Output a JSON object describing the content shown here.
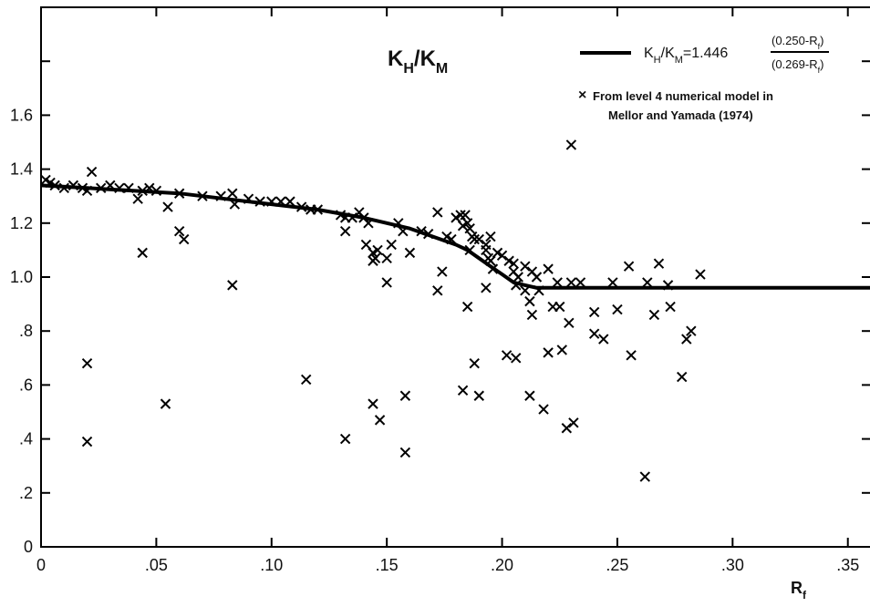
{
  "chart_data": {
    "type": "scatter",
    "title_parts": {
      "base": "K",
      "sub1": "H",
      "slash": "/K",
      "sub2": "M"
    },
    "xlabel_parts": {
      "base": "R",
      "sub": "f"
    },
    "ylabel": "",
    "xlim": [
      0,
      0.36
    ],
    "ylim": [
      0,
      2.0
    ],
    "x_ticks": [
      0,
      0.05,
      0.1,
      0.15,
      0.2,
      0.25,
      0.3,
      0.35
    ],
    "x_tick_labels": [
      "0",
      ".05",
      ".10",
      ".15",
      ".20",
      ".25",
      ".30",
      ".35"
    ],
    "y_ticks": [
      0,
      0.2,
      0.4,
      0.6,
      0.8,
      1.0,
      1.2,
      1.4,
      1.6,
      1.8
    ],
    "y_tick_labels": [
      "0",
      ".2",
      ".4",
      ".6",
      ".8",
      "1.0",
      "1.2",
      "1.4",
      "1.6",
      ""
    ],
    "legend": {
      "line_label_prefix": "K",
      "line_label_sub1": "H",
      "line_label_mid": "/K",
      "line_label_sub2": "M",
      "line_label_coef": "=1.446",
      "fraction_numerator": "(0.250-R",
      "fraction_denominator": "(0.269-R",
      "fraction_sub": "f",
      "fraction_close": ")",
      "marker_symbol": "×",
      "marker_label_line1": "From level 4 numerical model in",
      "marker_label_line2": "Mellor and Yamada (1974)"
    },
    "series": [
      {
        "kind": "line",
        "x": [
          0,
          0.02,
          0.04,
          0.06,
          0.08,
          0.1,
          0.12,
          0.14,
          0.15,
          0.16,
          0.17,
          0.18,
          0.185,
          0.19,
          0.195,
          0.2,
          0.205,
          0.21,
          0.215,
          0.22,
          0.25,
          0.3,
          0.36
        ],
        "y": [
          1.34,
          1.33,
          1.32,
          1.31,
          1.29,
          1.27,
          1.25,
          1.22,
          1.2,
          1.18,
          1.15,
          1.12,
          1.1,
          1.07,
          1.04,
          1.01,
          0.98,
          0.97,
          0.96,
          0.96,
          0.96,
          0.96,
          0.96
        ]
      },
      {
        "kind": "scatter",
        "points": [
          [
            0.002,
            1.36
          ],
          [
            0.004,
            1.35
          ],
          [
            0.006,
            1.34
          ],
          [
            0.01,
            1.33
          ],
          [
            0.014,
            1.34
          ],
          [
            0.018,
            1.33
          ],
          [
            0.02,
            1.32
          ],
          [
            0.022,
            1.39
          ],
          [
            0.026,
            1.33
          ],
          [
            0.03,
            1.34
          ],
          [
            0.034,
            1.33
          ],
          [
            0.038,
            1.33
          ],
          [
            0.042,
            1.29
          ],
          [
            0.044,
            1.32
          ],
          [
            0.047,
            1.33
          ],
          [
            0.05,
            1.32
          ],
          [
            0.055,
            1.26
          ],
          [
            0.06,
            1.31
          ],
          [
            0.06,
            1.17
          ],
          [
            0.062,
            1.14
          ],
          [
            0.044,
            1.09
          ],
          [
            0.02,
            0.68
          ],
          [
            0.02,
            0.39
          ],
          [
            0.054,
            0.53
          ],
          [
            0.07,
            1.3
          ],
          [
            0.078,
            1.3
          ],
          [
            0.083,
            1.31
          ],
          [
            0.084,
            1.27
          ],
          [
            0.09,
            1.29
          ],
          [
            0.095,
            1.28
          ],
          [
            0.1,
            1.28
          ],
          [
            0.104,
            1.28
          ],
          [
            0.108,
            1.28
          ],
          [
            0.113,
            1.26
          ],
          [
            0.117,
            1.25
          ],
          [
            0.12,
            1.25
          ],
          [
            0.083,
            0.97
          ],
          [
            0.115,
            0.62
          ],
          [
            0.13,
            1.23
          ],
          [
            0.132,
            1.22
          ],
          [
            0.135,
            1.22
          ],
          [
            0.138,
            1.24
          ],
          [
            0.14,
            1.22
          ],
          [
            0.142,
            1.2
          ],
          [
            0.141,
            1.12
          ],
          [
            0.144,
            1.09
          ],
          [
            0.144,
            1.06
          ],
          [
            0.145,
            1.07
          ],
          [
            0.146,
            1.1
          ],
          [
            0.15,
            1.07
          ],
          [
            0.15,
            0.98
          ],
          [
            0.152,
            1.12
          ],
          [
            0.132,
            1.17
          ],
          [
            0.132,
            0.4
          ],
          [
            0.144,
            0.53
          ],
          [
            0.147,
            0.47
          ],
          [
            0.155,
            1.2
          ],
          [
            0.157,
            1.17
          ],
          [
            0.16,
            1.09
          ],
          [
            0.158,
            0.56
          ],
          [
            0.158,
            0.35
          ],
          [
            0.165,
            1.17
          ],
          [
            0.168,
            1.16
          ],
          [
            0.172,
            1.24
          ],
          [
            0.174,
            1.02
          ],
          [
            0.172,
            0.95
          ],
          [
            0.176,
            1.15
          ],
          [
            0.178,
            1.14
          ],
          [
            0.18,
            1.22
          ],
          [
            0.182,
            1.23
          ],
          [
            0.184,
            1.23
          ],
          [
            0.183,
            1.19
          ],
          [
            0.185,
            1.2
          ],
          [
            0.186,
            1.18
          ],
          [
            0.187,
            1.15
          ],
          [
            0.188,
            1.14
          ],
          [
            0.186,
            1.1
          ],
          [
            0.185,
            0.89
          ],
          [
            0.183,
            0.58
          ],
          [
            0.188,
            0.68
          ],
          [
            0.19,
            1.14
          ],
          [
            0.19,
            0.56
          ],
          [
            0.193,
            1.1
          ],
          [
            0.193,
            1.12
          ],
          [
            0.195,
            1.15
          ],
          [
            0.194,
            1.07
          ],
          [
            0.195,
            1.06
          ],
          [
            0.193,
            0.96
          ],
          [
            0.196,
            1.03
          ],
          [
            0.198,
            1.09
          ],
          [
            0.2,
            1.08
          ],
          [
            0.203,
            1.06
          ],
          [
            0.205,
            1.05
          ],
          [
            0.205,
            1.02
          ],
          [
            0.206,
            0.97
          ],
          [
            0.207,
            1.0
          ],
          [
            0.202,
            0.71
          ],
          [
            0.206,
            0.7
          ],
          [
            0.21,
            0.95
          ],
          [
            0.21,
            1.04
          ],
          [
            0.212,
            0.91
          ],
          [
            0.213,
            0.86
          ],
          [
            0.213,
            1.02
          ],
          [
            0.212,
            0.56
          ],
          [
            0.215,
            1.0
          ],
          [
            0.216,
            0.95
          ],
          [
            0.218,
            0.51
          ],
          [
            0.22,
            0.72
          ],
          [
            0.22,
            1.03
          ],
          [
            0.222,
            0.89
          ],
          [
            0.224,
            0.98
          ],
          [
            0.226,
            0.73
          ],
          [
            0.225,
            0.89
          ],
          [
            0.228,
            0.44
          ],
          [
            0.229,
            0.83
          ],
          [
            0.23,
            0.98
          ],
          [
            0.23,
            1.49
          ],
          [
            0.231,
            0.46
          ],
          [
            0.234,
            0.98
          ],
          [
            0.24,
            0.87
          ],
          [
            0.24,
            0.79
          ],
          [
            0.244,
            0.77
          ],
          [
            0.248,
            0.98
          ],
          [
            0.25,
            0.88
          ],
          [
            0.255,
            1.04
          ],
          [
            0.256,
            0.71
          ],
          [
            0.262,
            0.26
          ],
          [
            0.263,
            0.98
          ],
          [
            0.266,
            0.86
          ],
          [
            0.268,
            1.05
          ],
          [
            0.272,
            0.97
          ],
          [
            0.273,
            0.89
          ],
          [
            0.278,
            0.63
          ],
          [
            0.28,
            0.77
          ],
          [
            0.282,
            0.8
          ],
          [
            0.286,
            1.01
          ]
        ]
      }
    ],
    "grid": false,
    "legend_position": "top-right"
  }
}
